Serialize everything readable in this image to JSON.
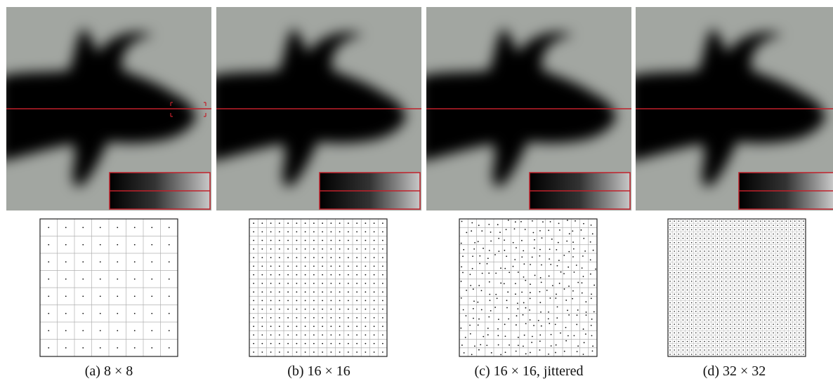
{
  "figure": {
    "panels": [
      {
        "id": "a",
        "caption": "(a) 8 × 8",
        "grid_n": 8,
        "jittered": false
      },
      {
        "id": "b",
        "caption": "(b) 16 × 16",
        "grid_n": 16,
        "jittered": false
      },
      {
        "id": "c",
        "caption": "(c) 16 × 16, jittered",
        "grid_n": 16,
        "jittered": true
      },
      {
        "id": "d",
        "caption": "(d) 32 × 32",
        "grid_n": 32,
        "jittered": false
      }
    ],
    "colors": {
      "background_gray": "#a2a6a1",
      "silhouette": "#000000",
      "scanline_red": "#c0202a",
      "grid_line": "#b0b0b0",
      "grid_frame": "#222222",
      "sample_dot": "#111111"
    }
  }
}
